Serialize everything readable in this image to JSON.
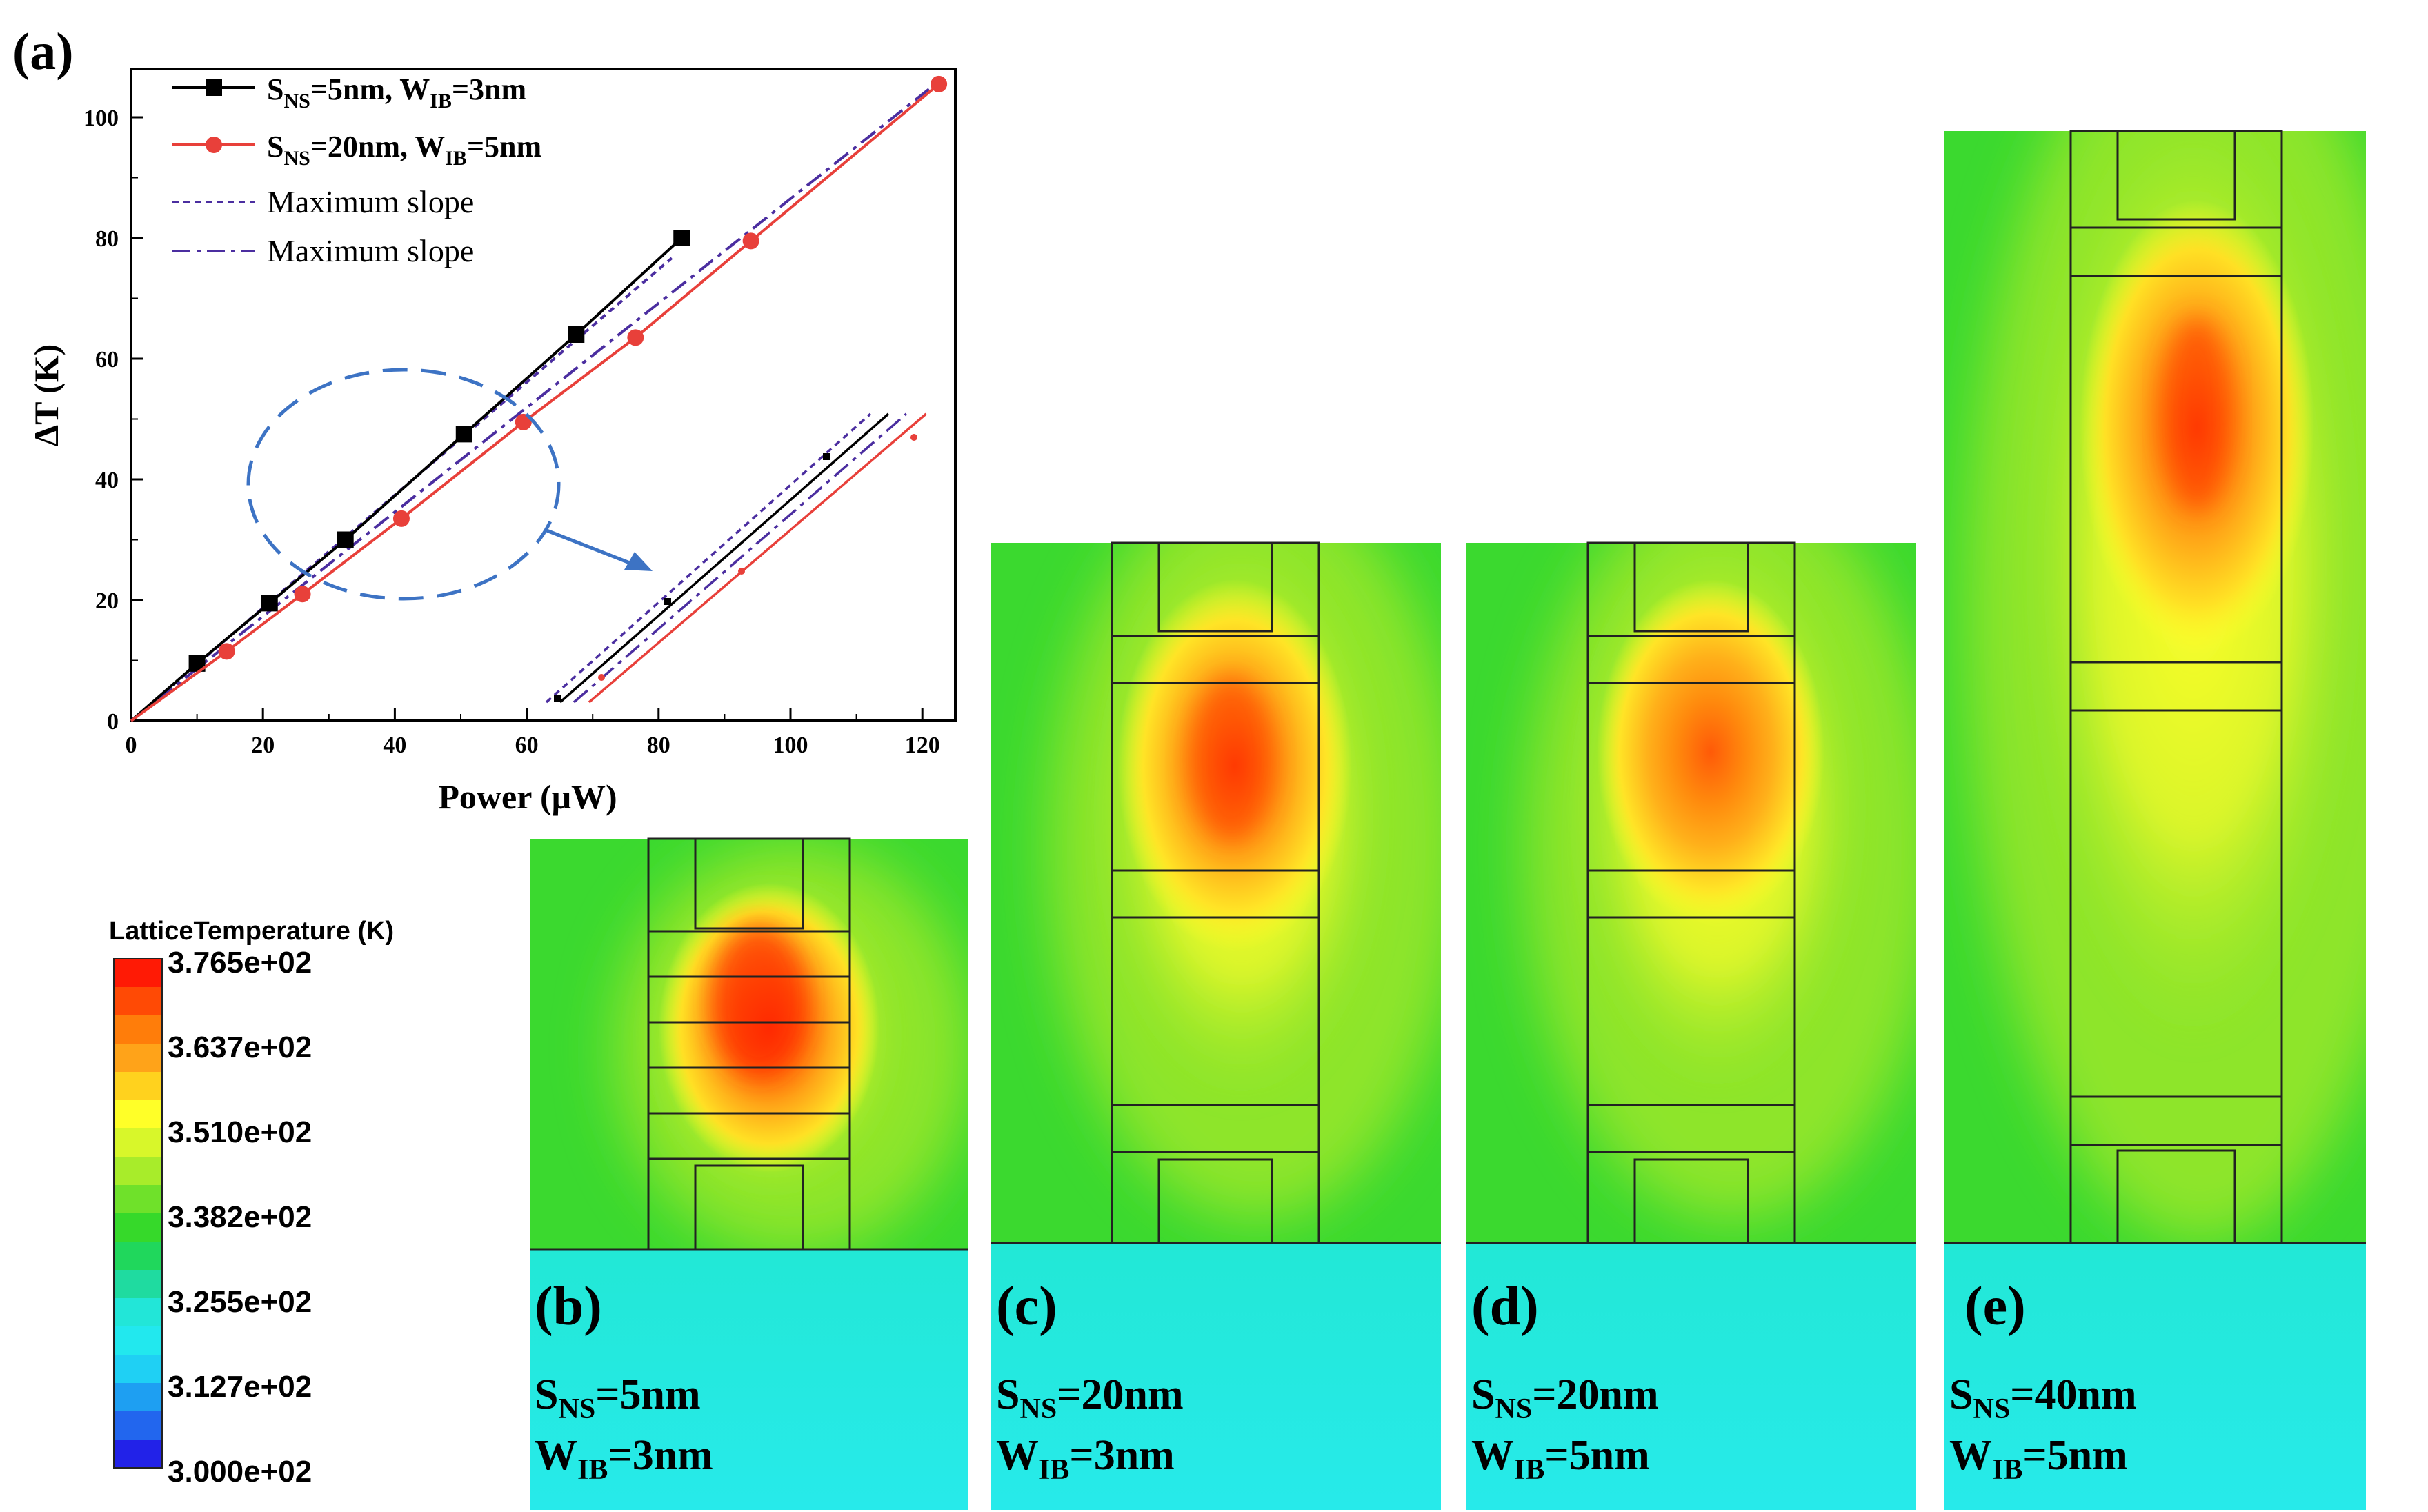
{
  "chart_data": {
    "type": "line",
    "panel_label": "(a)",
    "xlabel": "Power (μW)",
    "ylabel": "ΔT (K)",
    "xlim": [
      0,
      125
    ],
    "ylim": [
      0,
      108
    ],
    "x_ticks": [
      0,
      20,
      40,
      60,
      80,
      100,
      120
    ],
    "y_ticks": [
      0,
      20,
      40,
      60,
      80,
      100
    ],
    "series": [
      {
        "name_main": "S",
        "name_sub1": "NS",
        "name_mid": "=5nm, W",
        "name_sub2": "IB",
        "name_end": "=3nm",
        "color": "#000000",
        "marker": "square",
        "x": [
          0,
          10,
          21,
          32.5,
          50.5,
          67.5,
          83.5
        ],
        "y": [
          0,
          9.5,
          19.5,
          30,
          47.5,
          64,
          80
        ]
      },
      {
        "name_main": "S",
        "name_sub1": "NS",
        "name_mid": "=20nm, W",
        "name_sub2": "IB",
        "name_end": "=5nm",
        "color": "#e8403a",
        "marker": "circle",
        "x": [
          0,
          14.5,
          26,
          41,
          59.5,
          76.5,
          94,
          122.5
        ],
        "y": [
          0,
          11.5,
          21,
          33.5,
          49.5,
          63.5,
          79.5,
          105.5
        ]
      }
    ],
    "slope_lines": [
      {
        "name": "Maximum slope",
        "style": "dotted",
        "color": "#4b2ea0",
        "slope": 0.935,
        "x_end": 82
      },
      {
        "name": "Maximum slope",
        "style": "dashdot",
        "color": "#4b2ea0",
        "slope": 0.865,
        "x_end": 121
      }
    ]
  },
  "colorbar": {
    "title": "LatticeTemperature (K)",
    "labels": [
      "3.765e+02",
      "3.637e+02",
      "3.510e+02",
      "3.382e+02",
      "3.255e+02",
      "3.127e+02",
      "3.000e+02"
    ],
    "colors": [
      "#ff1a05",
      "#ff4a05",
      "#ff7d0a",
      "#ffa319",
      "#ffd21e",
      "#ffff28",
      "#d8f72a",
      "#a8ec2a",
      "#6fe12a",
      "#36d92a",
      "#20d75c",
      "#1fdba0",
      "#22e6d8",
      "#22e8ee",
      "#1fd0f4",
      "#1e9ff2",
      "#2266ee",
      "#2222e8"
    ]
  },
  "panels": [
    {
      "label": "(b)",
      "s_main": "S",
      "s_sub": "NS",
      "s_val": "=5nm",
      "w_main": "W",
      "w_sub": "IB",
      "w_val": "=3nm"
    },
    {
      "label": "(c)",
      "s_main": "S",
      "s_sub": "NS",
      "s_val": "=20nm",
      "w_main": "W",
      "w_sub": "IB",
      "w_val": "=3nm"
    },
    {
      "label": "(d)",
      "s_main": "S",
      "s_sub": "NS",
      "s_val": "=20nm",
      "w_main": "W",
      "w_sub": "IB",
      "w_val": "=5nm"
    },
    {
      "label": "(e)",
      "s_main": "S",
      "s_sub": "NS",
      "s_val": "=40nm",
      "w_main": "W",
      "w_sub": "IB",
      "w_val": "=5nm"
    }
  ]
}
